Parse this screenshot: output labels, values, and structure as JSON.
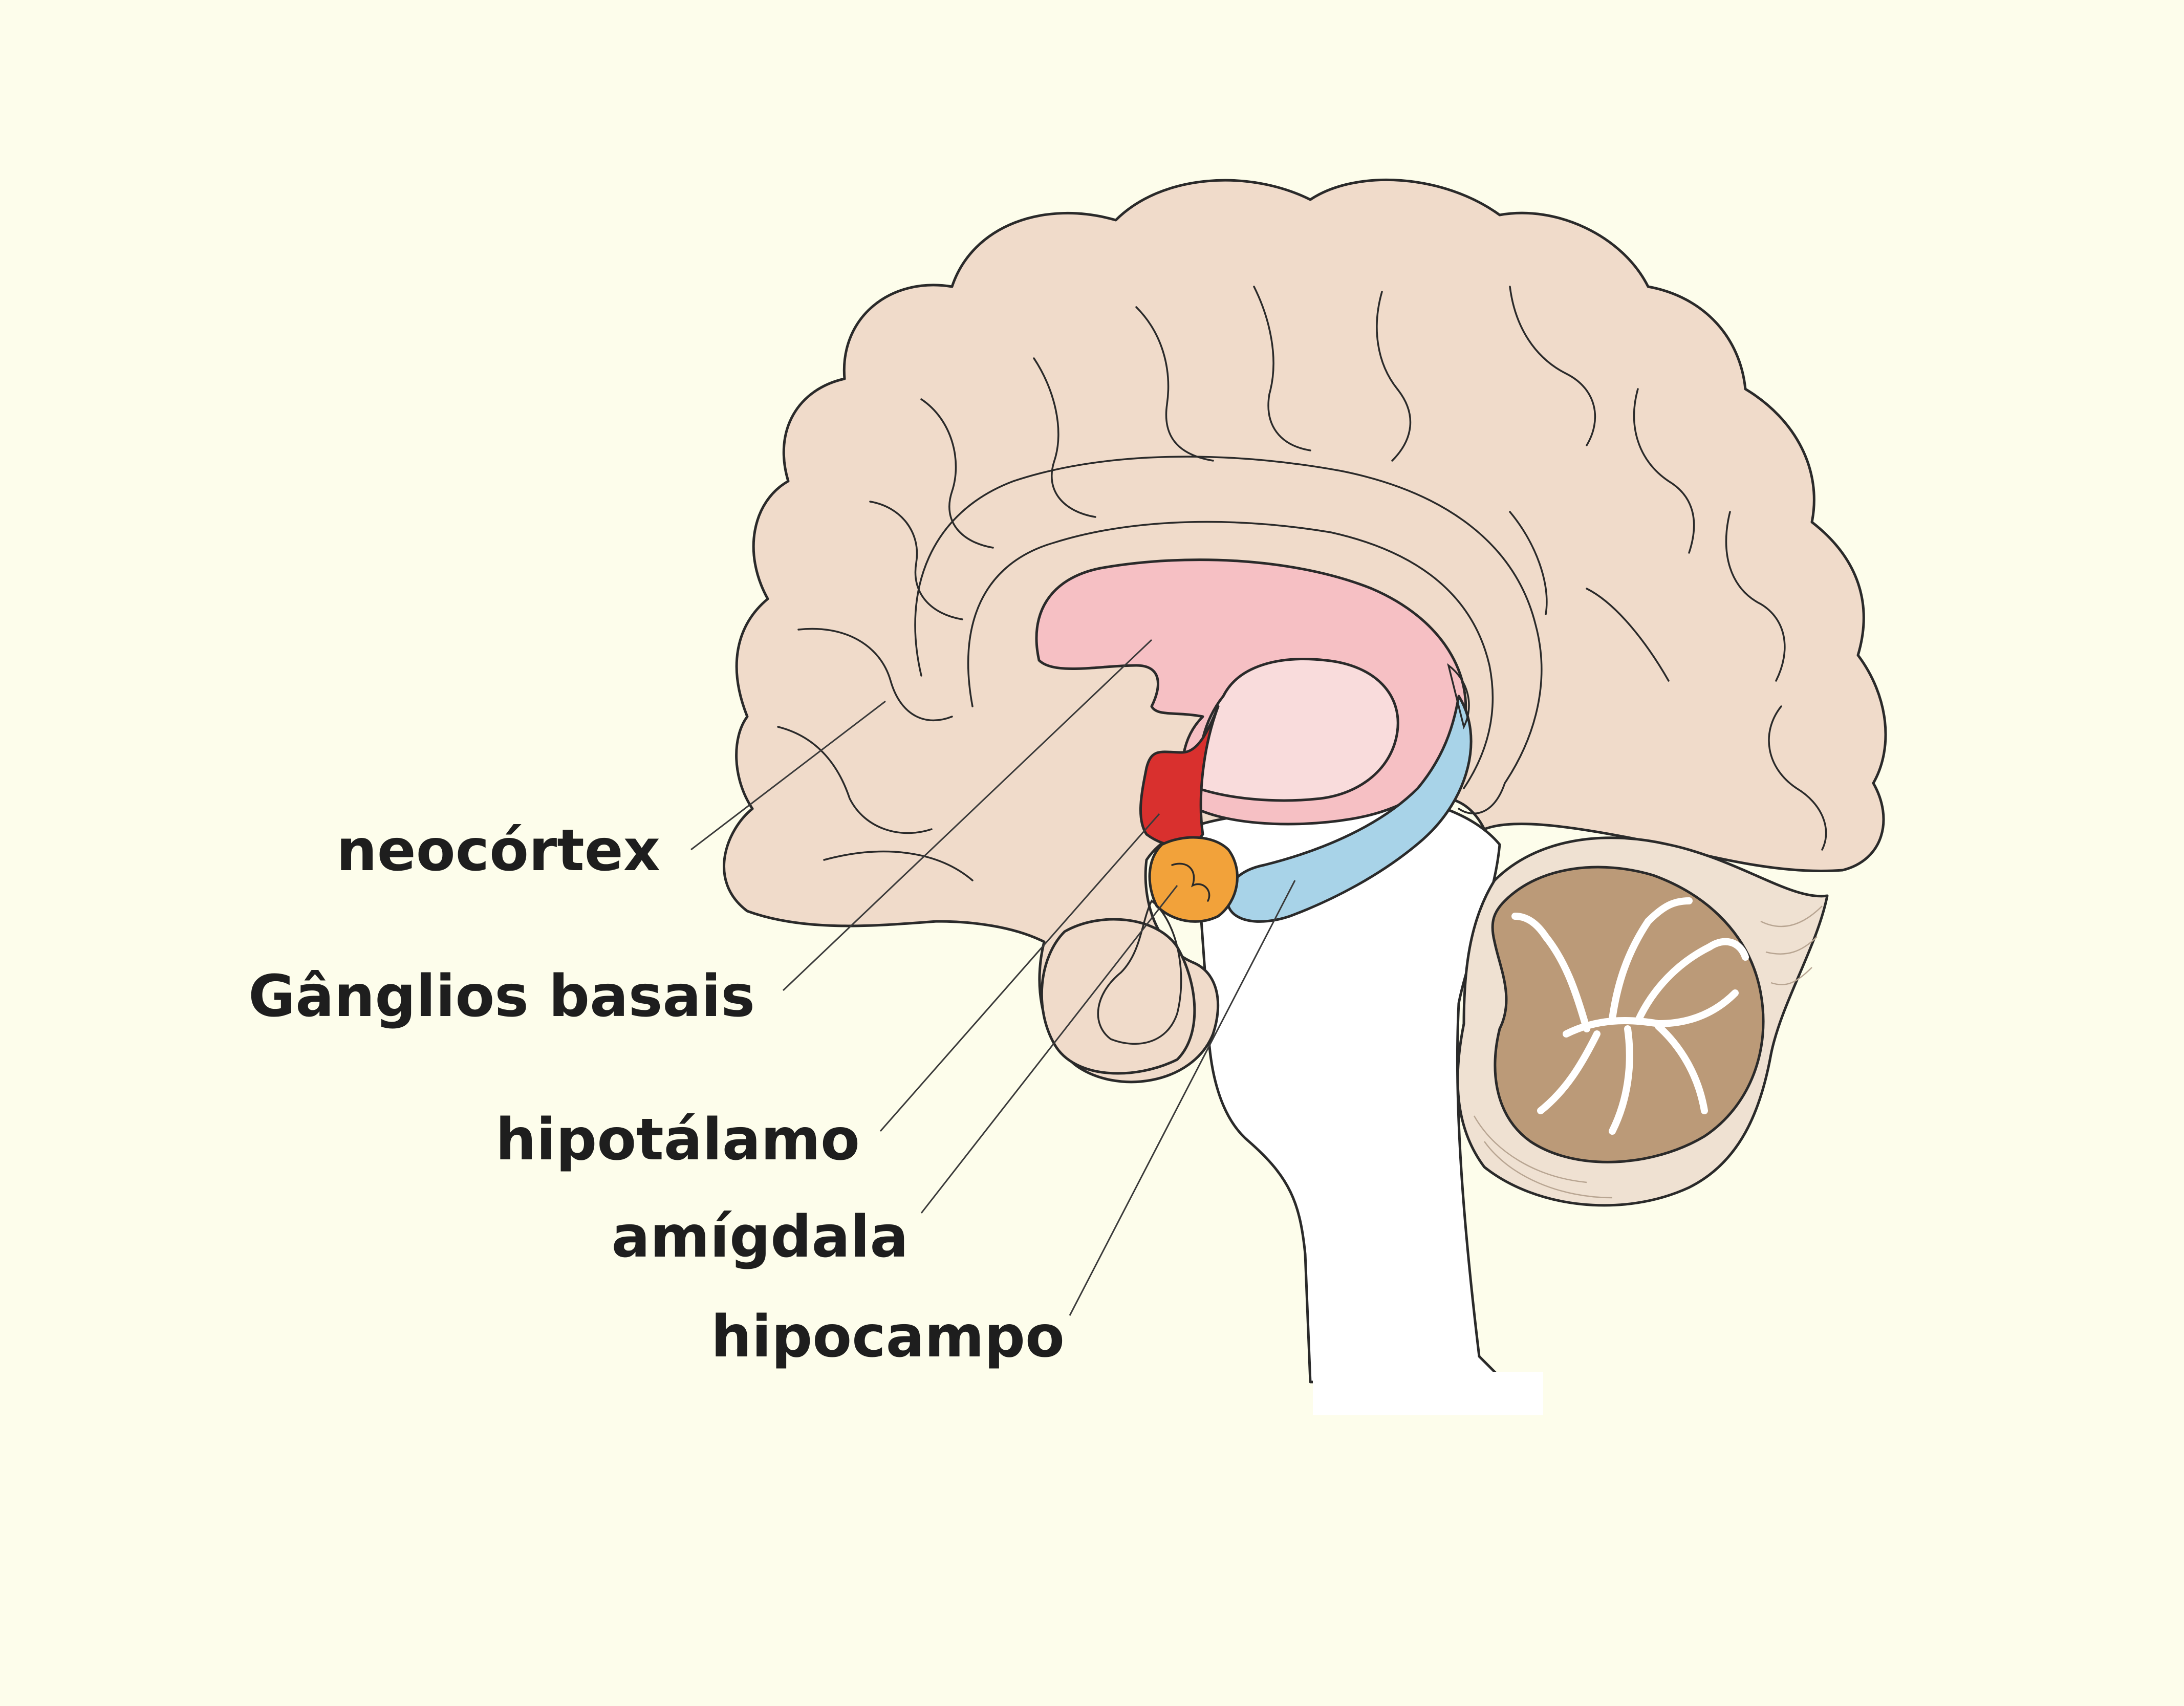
{
  "colors": {
    "background": "#fdfdeb",
    "cortex": "#f0dbca",
    "basal_ganglia": "#f6c0c4",
    "thalamus_inner": "#f9dcdc",
    "hypothalamus": "#d9302e",
    "amygdala": "#f2a23a",
    "hippocampus": "#a8d3e8",
    "brainstem": "#ffffff",
    "cerebellum": "#bb9a78"
  },
  "labels": {
    "neocortex": "neocórtex",
    "basal_ganglia": "Gânglios basais",
    "hypothalamus": "hipotálamo",
    "amygdala": "amígdala",
    "hippocampus": "hipocampo"
  }
}
